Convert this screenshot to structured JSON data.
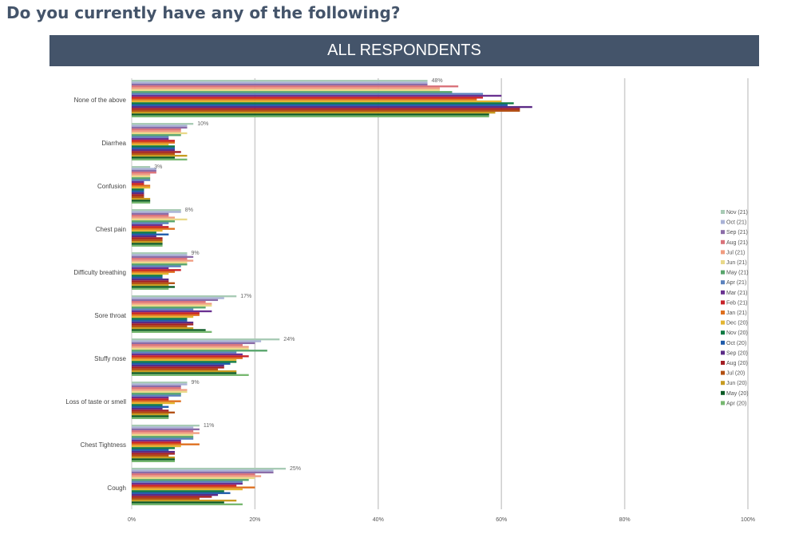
{
  "header": {
    "title": "Do you currently have any of the following?",
    "banner": "ALL RESPONDENTS"
  },
  "chart_data": {
    "type": "bar",
    "orientation": "horizontal",
    "title": "Do you currently have any of the following?",
    "subtitle": "ALL RESPONDENTS",
    "xlabel": "",
    "ylabel": "",
    "xlim": [
      0,
      100
    ],
    "x_ticks": [
      "0%",
      "20%",
      "40%",
      "60%",
      "80%",
      "100%"
    ],
    "grid": true,
    "legend_position": "right",
    "categories": [
      "None of the above",
      "Diarrhea",
      "Confusion",
      "Chest pain",
      "Difficulty breathing",
      "Sore throat",
      "Stuffy nose",
      "Loss of taste or smell",
      "Chest Tightness",
      "Cough"
    ],
    "data_labels": [
      "48%",
      "10%",
      "3%",
      "8%",
      "9%",
      "17%",
      "24%",
      "9%",
      "11%",
      "25%"
    ],
    "series": [
      {
        "name": "Nov (21)",
        "color": "#a8cbb5",
        "values": [
          48,
          10,
          3,
          8,
          9,
          17,
          24,
          9,
          11,
          25
        ]
      },
      {
        "name": "Oct (21)",
        "color": "#a9b2d6",
        "values": [
          48,
          9,
          4,
          8,
          9,
          15,
          21,
          9,
          10,
          23
        ]
      },
      {
        "name": "Sep (21)",
        "color": "#8b6ca8",
        "values": [
          48,
          9,
          4,
          6,
          10,
          14,
          20,
          8,
          11,
          23
        ]
      },
      {
        "name": "Aug (21)",
        "color": "#d9727a",
        "values": [
          53,
          8,
          4,
          6,
          9,
          12,
          18,
          8,
          10,
          20
        ]
      },
      {
        "name": "Jul (21)",
        "color": "#f09c80",
        "values": [
          50,
          8,
          3,
          7,
          10,
          13,
          19,
          9,
          11,
          21
        ]
      },
      {
        "name": "Jun (21)",
        "color": "#e9d98a",
        "values": [
          50,
          9,
          3,
          9,
          9,
          13,
          19,
          9,
          10,
          20
        ]
      },
      {
        "name": "May (21)",
        "color": "#57a56b",
        "values": [
          52,
          8,
          3,
          7,
          9,
          12,
          22,
          8,
          10,
          19
        ]
      },
      {
        "name": "Apr (21)",
        "color": "#5b82be",
        "values": [
          57,
          6,
          3,
          6,
          8,
          10,
          17,
          8,
          10,
          18
        ]
      },
      {
        "name": "Mar (21)",
        "color": "#6a3191",
        "values": [
          60,
          6,
          2,
          5,
          6,
          13,
          18,
          6,
          8,
          18
        ]
      },
      {
        "name": "Feb (21)",
        "color": "#c8232a",
        "values": [
          57,
          7,
          2,
          6,
          8,
          11,
          19,
          6,
          8,
          17
        ]
      },
      {
        "name": "Jan (21)",
        "color": "#de6f1e",
        "values": [
          56,
          7,
          3,
          7,
          7,
          11,
          18,
          8,
          11,
          20
        ]
      },
      {
        "name": "Dec (20)",
        "color": "#e3b531",
        "values": [
          60,
          6,
          3,
          5,
          6,
          10,
          17,
          7,
          8,
          18
        ]
      },
      {
        "name": "Nov (20)",
        "color": "#0e7a42",
        "values": [
          62,
          7,
          2,
          4,
          5,
          9,
          17,
          5,
          7,
          15
        ]
      },
      {
        "name": "Oct (20)",
        "color": "#1d5aaa",
        "values": [
          61,
          7,
          2,
          6,
          5,
          9,
          16,
          6,
          6,
          16
        ]
      },
      {
        "name": "Sep (20)",
        "color": "#5b2a86",
        "values": [
          65,
          7,
          2,
          4,
          6,
          10,
          15,
          5,
          7,
          14
        ]
      },
      {
        "name": "Aug (20)",
        "color": "#a31e24",
        "values": [
          63,
          8,
          2,
          5,
          6,
          10,
          15,
          6,
          7,
          13
        ]
      },
      {
        "name": "Jul (20)",
        "color": "#b24f12",
        "values": [
          63,
          7,
          2,
          5,
          7,
          9,
          14,
          7,
          6,
          11
        ]
      },
      {
        "name": "Jun (20)",
        "color": "#c79b21",
        "values": [
          59,
          9,
          3,
          5,
          6,
          10,
          17,
          6,
          7,
          17
        ]
      },
      {
        "name": "May (20)",
        "color": "#0a5a24",
        "values": [
          58,
          7,
          3,
          5,
          7,
          12,
          17,
          6,
          7,
          15
        ]
      },
      {
        "name": "Apr (20)",
        "color": "#77b870",
        "values": [
          58,
          9,
          3,
          5,
          6,
          13,
          19,
          6,
          7,
          18
        ]
      }
    ]
  }
}
